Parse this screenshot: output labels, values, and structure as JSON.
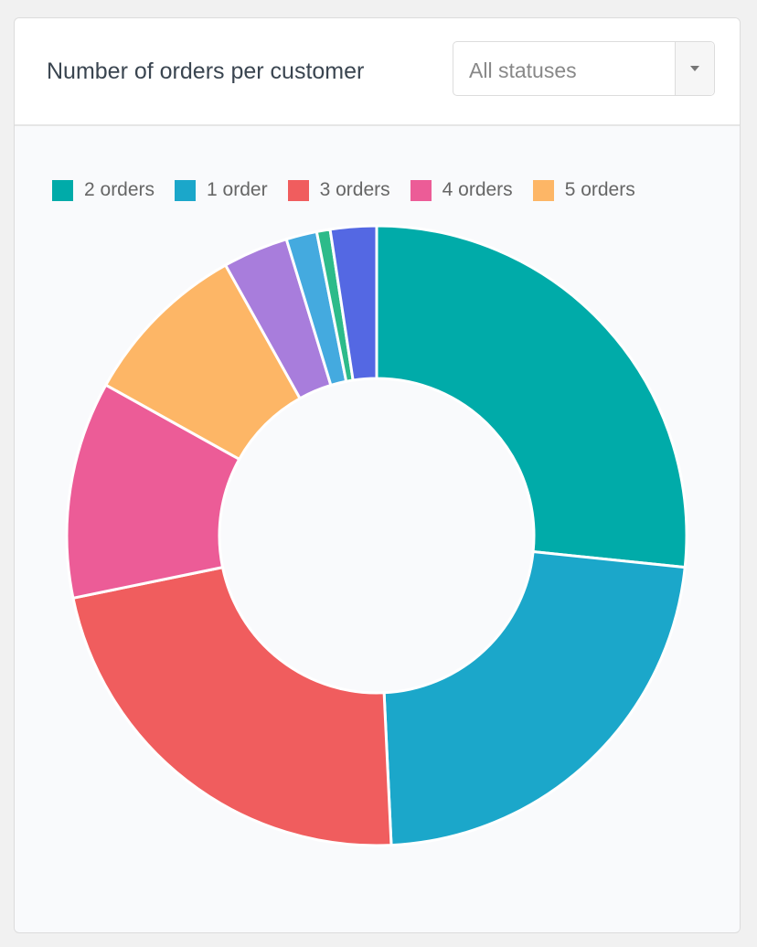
{
  "header": {
    "title": "Number of orders per customer",
    "status_select": "All statuses"
  },
  "chart_data": {
    "type": "pie",
    "variant": "donut",
    "title": "Number of orders per customer",
    "legend_position": "top",
    "slices": [
      {
        "label": "2 orders",
        "value": 26.6,
        "color": "#00aba9"
      },
      {
        "label": "1 order",
        "value": 22.6,
        "color": "#1ba7ca"
      },
      {
        "label": "3 orders",
        "value": 22.5,
        "color": "#f05d5e"
      },
      {
        "label": "4 orders",
        "value": 11.3,
        "color": "#ec5c97"
      },
      {
        "label": "5 orders",
        "value": 8.8,
        "color": "#fdb666"
      },
      {
        "label": null,
        "value": 3.4,
        "color": "#a87ddc"
      },
      {
        "label": null,
        "value": 1.6,
        "color": "#44aadf"
      },
      {
        "label": null,
        "value": 0.7,
        "color": "#2dbb8a"
      },
      {
        "label": null,
        "value": 2.4,
        "color": "#5468e3"
      }
    ]
  }
}
